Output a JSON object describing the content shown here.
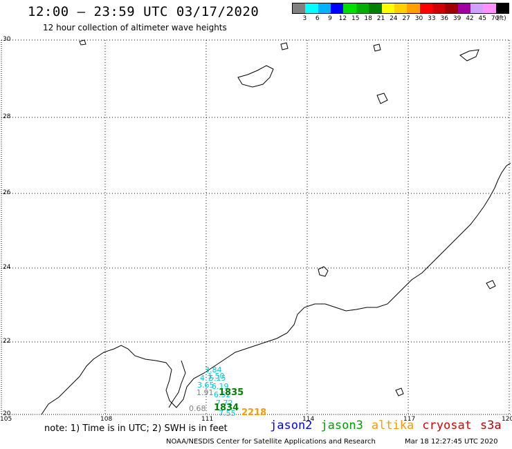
{
  "title": "12:00 – 23:59 UTC 03/17/2020",
  "subtitle": "12 hour collection of altimeter wave heights",
  "legend": {
    "colors": [
      "#808080",
      "#00ffff",
      "#00b4ff",
      "#0000ff",
      "#00e000",
      "#00b000",
      "#008000",
      "#ffff00",
      "#ffd000",
      "#ffa000",
      "#ff0000",
      "#d00000",
      "#a00000",
      "#a000a0",
      "#d0a0ff",
      "#ff90ff",
      "#000000"
    ],
    "labels": [
      "3",
      "6",
      "9",
      "12",
      "15",
      "18",
      "21",
      "24",
      "27",
      "30",
      "33",
      "36",
      "39",
      "42",
      "45",
      "70",
      "(ft)"
    ]
  },
  "axes": {
    "lat_labels": [
      "30",
      "28",
      "26",
      "24",
      "22",
      "20"
    ],
    "lon_labels": [
      "105",
      "108",
      "111",
      "114",
      "117",
      "120"
    ]
  },
  "wave_readings": [
    {
      "text": "3.84",
      "color": "#00c8e0"
    },
    {
      "text": "1.50",
      "color": "#00c8e0"
    },
    {
      "text": "4.7",
      "color": "#00c8e0"
    },
    {
      "text": "5.15",
      "color": "#00c8e0"
    },
    {
      "text": "3.65",
      "color": "#00c8e0"
    },
    {
      "text": "6.19",
      "color": "#00c8e0"
    },
    {
      "text": "1.91",
      "color": "#808080"
    },
    {
      "text": "6.52",
      "color": "#00c8e0"
    },
    {
      "text": "1835",
      "color": "#008000"
    },
    {
      "text": "7.72",
      "color": "#00c8e0"
    },
    {
      "text": "0.68",
      "color": "#808080"
    },
    {
      "text": "1834",
      "color": "#008000"
    },
    {
      "text": "7.55",
      "color": "#00c8e0"
    },
    {
      "text": "2218",
      "color": "#ff9900"
    }
  ],
  "note": "note: 1) Time is in UTC; 2) SWH is in feet",
  "satellites": [
    {
      "name": "jason2",
      "color": "#0000ff"
    },
    {
      "name": "jason3",
      "color": "#00a000"
    },
    {
      "name": "altika",
      "color": "#ff9900"
    },
    {
      "name": "cryosat",
      "color": "#e00000"
    },
    {
      "name": "s3a",
      "color": "#c00000"
    }
  ],
  "footer": {
    "left": "NOAA/NESDIS Center for Satellite Applications and Research",
    "right": "Mar 18 12:27:45 UTC 2020"
  }
}
